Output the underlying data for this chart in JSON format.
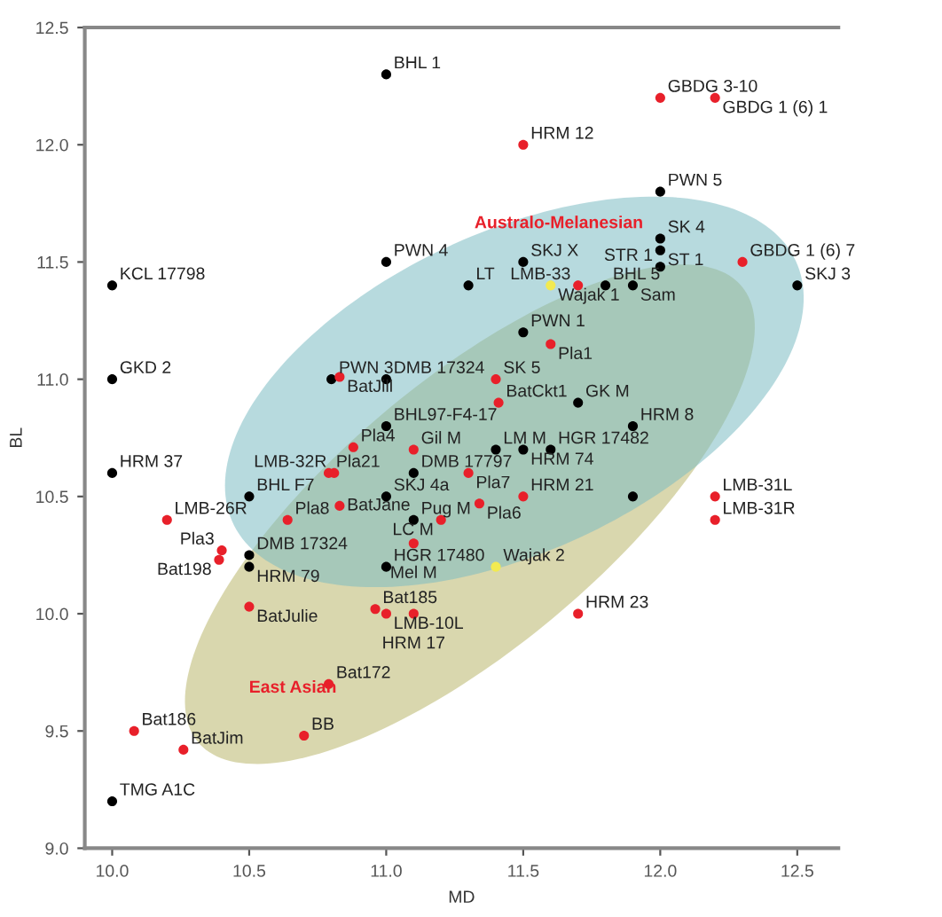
{
  "chart_data": {
    "type": "scatter",
    "xlabel": "MD",
    "ylabel": "BL",
    "xlim": [
      9.9,
      12.65
    ],
    "ylim": [
      9.0,
      12.5
    ],
    "xticks": [
      {
        "value": 10.0,
        "label": "10.0"
      },
      {
        "value": 10.5,
        "label": "10.5"
      },
      {
        "value": 11.0,
        "label": "11.0"
      },
      {
        "value": 11.5,
        "label": "11.5"
      },
      {
        "value": 12.0,
        "label": "12.0"
      },
      {
        "value": 12.5,
        "label": "12.5"
      }
    ],
    "yticks": [
      {
        "value": 9.0,
        "label": "9.0"
      },
      {
        "value": 9.5,
        "label": "9.5"
      },
      {
        "value": 10.0,
        "label": "10.0"
      },
      {
        "value": 10.5,
        "label": "10.5"
      },
      {
        "value": 11.0,
        "label": "11.0"
      },
      {
        "value": 11.5,
        "label": "11.5"
      },
      {
        "value": 12.0,
        "label": "12.0"
      },
      {
        "value": 12.5,
        "label": "12.5"
      }
    ],
    "grid": false,
    "legend": false,
    "marker": "circle",
    "series": [
      {
        "color": "#000000",
        "x": [
          11.0,
          10.0,
          11.0,
          12.0,
          12.0,
          12.0,
          12.0,
          11.3,
          11.5,
          11.8,
          11.9,
          12.5,
          11.5,
          11.7,
          11.9,
          11.4,
          11.5,
          11.6,
          11.1,
          11.9,
          11.1,
          11.0,
          10.0,
          10.0,
          10.8,
          11.0,
          11.0,
          10.5,
          11.0,
          10.5,
          10.5,
          10.0
        ],
        "values": [
          12.3,
          11.4,
          11.5,
          11.8,
          11.6,
          11.55,
          11.48,
          11.4,
          11.5,
          11.4,
          11.4,
          11.4,
          11.2,
          10.9,
          10.8,
          10.7,
          10.7,
          10.7,
          10.6,
          10.5,
          10.4,
          10.2,
          11.0,
          10.6,
          11.0,
          11.0,
          10.8,
          10.5,
          10.5,
          10.25,
          10.2,
          9.2
        ]
      },
      {
        "color": "#e8202a",
        "x": [
          12.0,
          12.2,
          11.5,
          12.3,
          11.7,
          11.6,
          11.4,
          11.41,
          11.1,
          11.3,
          11.34,
          11.5,
          11.2,
          11.1,
          12.2,
          12.2,
          10.83,
          10.88,
          10.79,
          10.81,
          10.83,
          10.64,
          10.2,
          10.4,
          10.39,
          10.5,
          10.96,
          11.0,
          11.1,
          10.79,
          10.08,
          10.26,
          10.7,
          11.7
        ],
        "values": [
          12.2,
          12.2,
          12.0,
          11.5,
          11.4,
          11.15,
          11.0,
          10.9,
          10.7,
          10.6,
          10.47,
          10.5,
          10.4,
          10.3,
          10.5,
          10.4,
          11.01,
          10.71,
          10.6,
          10.6,
          10.46,
          10.4,
          10.4,
          10.27,
          10.23,
          10.03,
          10.02,
          10.0,
          10.0,
          9.7,
          9.5,
          9.42,
          9.48,
          10.0
        ]
      },
      {
        "color": "#f2ea50",
        "x": [
          11.6,
          11.4
        ],
        "values": [
          11.4,
          10.2
        ]
      }
    ],
    "annotations": [
      {
        "text": "BHL 1",
        "x": 11.0,
        "y": 12.3
      },
      {
        "text": "KCL 17798",
        "x": 10.0,
        "y": 11.4
      },
      {
        "text": "PWN 4",
        "x": 11.0,
        "y": 11.5
      },
      {
        "text": "PWN 5",
        "x": 12.0,
        "y": 11.8
      },
      {
        "text": "SK 4",
        "x": 12.0,
        "y": 11.6
      },
      {
        "text": "ST 1",
        "x": 12.0,
        "y": 11.55
      },
      {
        "text": "STR 1",
        "x": 12.0,
        "y": 11.48
      },
      {
        "text": "LT",
        "x": 11.3,
        "y": 11.4
      },
      {
        "text": "SKJ X",
        "x": 11.5,
        "y": 11.5
      },
      {
        "text": "BHL 5",
        "x": 11.8,
        "y": 11.4
      },
      {
        "text": "Sam",
        "x": 11.9,
        "y": 11.4
      },
      {
        "text": "SKJ 3",
        "x": 12.5,
        "y": 11.4
      },
      {
        "text": "PWN 1",
        "x": 11.5,
        "y": 11.2
      },
      {
        "text": "GK M",
        "x": 11.7,
        "y": 10.9
      },
      {
        "text": "HRM 8",
        "x": 11.9,
        "y": 10.8
      },
      {
        "text": "LM M",
        "x": 11.4,
        "y": 10.7
      },
      {
        "text": "HRM 74",
        "x": 11.5,
        "y": 10.7
      },
      {
        "text": "HGR 17482",
        "x": 11.6,
        "y": 10.7
      },
      {
        "text": "DMB 17797",
        "x": 11.1,
        "y": 10.6
      },
      {
        "text": "Pug M",
        "x": 11.1,
        "y": 10.4
      },
      {
        "text": "HGR 17480",
        "x": 11.0,
        "y": 10.2
      },
      {
        "text": "GKD 2",
        "x": 10.0,
        "y": 11.0
      },
      {
        "text": "HRM 37",
        "x": 10.0,
        "y": 10.6
      },
      {
        "text": "PWN 3",
        "x": 10.8,
        "y": 11.0
      },
      {
        "text": "DMB 17324",
        "x": 11.0,
        "y": 11.0
      },
      {
        "text": "BHL97-F4-17",
        "x": 11.0,
        "y": 10.8
      },
      {
        "text": "BHL F7",
        "x": 10.5,
        "y": 10.5
      },
      {
        "text": "SKJ 4a",
        "x": 11.0,
        "y": 10.5
      },
      {
        "text": "DMB 17324",
        "x": 10.5,
        "y": 10.25
      },
      {
        "text": "HRM 79",
        "x": 10.5,
        "y": 10.2
      },
      {
        "text": "TMG A1C",
        "x": 10.0,
        "y": 9.2
      },
      {
        "text": "GBDG 3-10",
        "x": 12.0,
        "y": 12.2
      },
      {
        "text": "GBDG 1 (6) 1",
        "x": 12.2,
        "y": 12.2
      },
      {
        "text": "HRM 12",
        "x": 11.5,
        "y": 12.0
      },
      {
        "text": "GBDG 1 (6) 7",
        "x": 12.3,
        "y": 11.5
      },
      {
        "text": "LMB-33",
        "x": 11.7,
        "y": 11.4
      },
      {
        "text": "Pla1",
        "x": 11.6,
        "y": 11.15
      },
      {
        "text": "SK 5",
        "x": 11.4,
        "y": 11.0
      },
      {
        "text": "BatCkt1",
        "x": 11.41,
        "y": 10.9
      },
      {
        "text": "Gil M",
        "x": 11.1,
        "y": 10.7
      },
      {
        "text": "Pla7",
        "x": 11.3,
        "y": 10.6
      },
      {
        "text": "Pla6",
        "x": 11.34,
        "y": 10.47
      },
      {
        "text": "HRM 21",
        "x": 11.5,
        "y": 10.5
      },
      {
        "text": "LC M",
        "x": 11.2,
        "y": 10.4
      },
      {
        "text": "Mel M",
        "x": 11.1,
        "y": 10.3
      },
      {
        "text": "LMB-31L",
        "x": 12.2,
        "y": 10.5
      },
      {
        "text": "LMB-31R",
        "x": 12.2,
        "y": 10.4
      },
      {
        "text": "BatJill",
        "x": 10.83,
        "y": 11.01
      },
      {
        "text": "Pla4",
        "x": 10.88,
        "y": 10.71
      },
      {
        "text": "Pla21",
        "x": 10.79,
        "y": 10.6
      },
      {
        "text": "LMB-32R",
        "x": 10.81,
        "y": 10.6
      },
      {
        "text": "BatJane",
        "x": 10.83,
        "y": 10.46
      },
      {
        "text": "Pla8",
        "x": 10.64,
        "y": 10.4
      },
      {
        "text": "LMB-26R",
        "x": 10.2,
        "y": 10.4
      },
      {
        "text": "Pla3",
        "x": 10.4,
        "y": 10.27
      },
      {
        "text": "Bat198",
        "x": 10.39,
        "y": 10.23
      },
      {
        "text": "BatJulie",
        "x": 10.5,
        "y": 10.03
      },
      {
        "text": "Bat185",
        "x": 10.96,
        "y": 10.02
      },
      {
        "text": "LMB-10L",
        "x": 11.0,
        "y": 10.0
      },
      {
        "text": "HRM 17",
        "x": 11.1,
        "y": 10.0
      },
      {
        "text": "Bat172",
        "x": 10.79,
        "y": 9.7
      },
      {
        "text": "Bat186",
        "x": 10.08,
        "y": 9.5
      },
      {
        "text": "BatJim",
        "x": 10.26,
        "y": 9.42
      },
      {
        "text": "BB",
        "x": 10.7,
        "y": 9.48
      },
      {
        "text": "HRM 23",
        "x": 11.7,
        "y": 10.0
      },
      {
        "text": "Wajak 1",
        "x": 11.6,
        "y": 11.4
      },
      {
        "text": "Wajak 2",
        "x": 11.4,
        "y": 10.2
      },
      "Australo-Melanesian",
      "East Asian"
    ]
  }
}
